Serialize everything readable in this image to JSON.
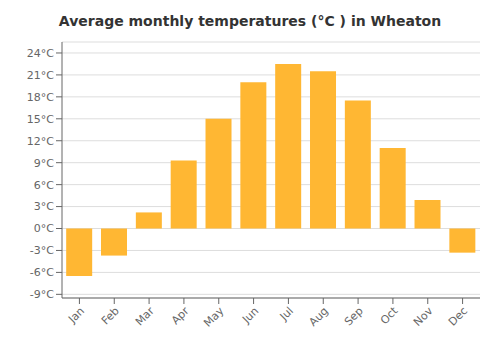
{
  "chart_data": {
    "type": "bar",
    "title": "Average monthly temperatures (°C ) in Wheaton",
    "categories": [
      "Jan",
      "Feb",
      "Mar",
      "Apr",
      "May",
      "Jun",
      "Jul",
      "Aug",
      "Sep",
      "Oct",
      "Nov",
      "Dec"
    ],
    "values": [
      -6.5,
      -3.7,
      2.2,
      9.3,
      15.0,
      20.0,
      22.5,
      21.5,
      17.5,
      11.0,
      3.9,
      -3.3
    ],
    "color": "#FFB733",
    "ylim": [
      -9.5,
      25.5
    ],
    "yticks": [
      {
        "value": -9,
        "label": "-9°C"
      },
      {
        "value": -6,
        "label": "-6°C"
      },
      {
        "value": -3,
        "label": "-3°C"
      },
      {
        "value": 0,
        "label": "0°C"
      },
      {
        "value": 3,
        "label": "3°C"
      },
      {
        "value": 6,
        "label": "6°C"
      },
      {
        "value": 9,
        "label": "9°C"
      },
      {
        "value": 12,
        "label": "12°C"
      },
      {
        "value": 15,
        "label": "15°C"
      },
      {
        "value": 18,
        "label": "18°C"
      },
      {
        "value": 21,
        "label": "21°C"
      },
      {
        "value": 24,
        "label": "24°C"
      }
    ],
    "grid": true
  }
}
